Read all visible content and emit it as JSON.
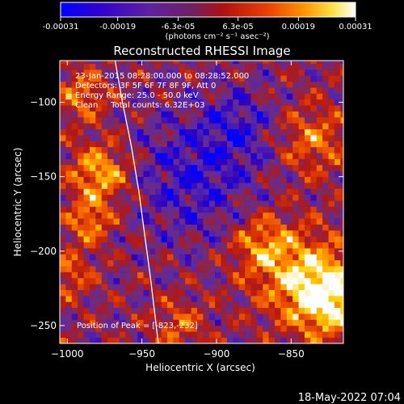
{
  "colorbar": {
    "tick_labels": [
      "-0.00031",
      "-0.00019",
      "-6.3e-05",
      "6.3e-05",
      "0.00019",
      "0.00031"
    ],
    "tick_values": [
      -0.00031,
      -0.00019,
      -6.3e-05,
      6.3e-05,
      0.00019,
      0.00031
    ],
    "range": [
      -0.00031,
      0.00031
    ],
    "unit_label": "(photons cm⁻² s⁻¹ asec⁻²)",
    "colormap": [
      "#0000ff",
      "#3000c0",
      "#5a2aa8",
      "#7a2a6a",
      "#b01818",
      "#e03a00",
      "#ff7a00",
      "#ffd000",
      "#ffffff"
    ]
  },
  "chart_data": {
    "type": "heatmap",
    "title": "Reconstructed RHESSI Image",
    "xlabel": "Heliocentric X (arcsec)",
    "ylabel": "Heliocentric Y (arcsec)",
    "xlim": [
      -1005,
      -815
    ],
    "ylim": [
      -262,
      -72
    ],
    "xticks": [
      -1000,
      -950,
      -900,
      -850
    ],
    "yticks": [
      -100,
      -150,
      -200,
      -250
    ],
    "xtick_labels": [
      "−1000",
      "−950",
      "−900",
      "−850"
    ],
    "ytick_labels": [
      "−100",
      "−150",
      "−200",
      "−250"
    ],
    "info_lines": [
      "23-Jan-2015 08:28:00.000 to 08:28:52.000",
      "Detectors: 3F 5F 6F 7F 8F 9F, Att 0",
      "Energy Range: 25.0 - 50.0 keV",
      "Clean     Total counts: 6.32E+03"
    ],
    "peak_label": "Position of Peak = [-823,-232]",
    "peak": [
      -823,
      -232
    ],
    "limb_curve": [
      [
        -968,
        -72
      ],
      [
        -963,
        -100
      ],
      [
        -957,
        -130
      ],
      [
        -952,
        -160
      ],
      [
        -948,
        -190
      ],
      [
        -944,
        -220
      ],
      [
        -941,
        -245
      ],
      [
        -939,
        -262
      ]
    ]
  },
  "footer": {
    "timestamp": "18-May-2022 07:04"
  }
}
